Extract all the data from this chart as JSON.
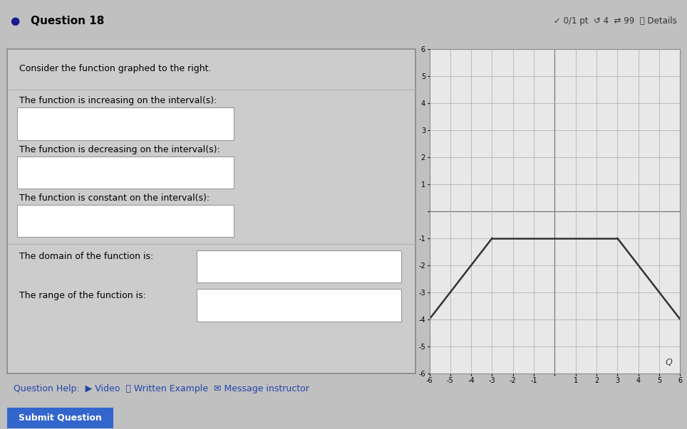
{
  "graph": {
    "xlim": [
      -6,
      6
    ],
    "ylim": [
      -6,
      6
    ],
    "xticks": [
      -6,
      -5,
      -4,
      -3,
      -2,
      -1,
      0,
      1,
      2,
      3,
      4,
      5,
      6
    ],
    "yticks": [
      -6,
      -5,
      -4,
      -3,
      -2,
      -1,
      0,
      1,
      2,
      3,
      4,
      5,
      6
    ],
    "segments": [
      {
        "x": [
          -6,
          -3
        ],
        "y": [
          -4,
          -1
        ]
      },
      {
        "x": [
          -3,
          3
        ],
        "y": [
          -1,
          -1
        ]
      },
      {
        "x": [
          3,
          6
        ],
        "y": [
          -1,
          -4
        ]
      }
    ],
    "line_color": "#333333",
    "line_width": 1.8,
    "bg_color": "#e8e8e8",
    "grid_color": "#aaaaaa"
  },
  "page_bg": "#c0c0c0",
  "header_text": "Question 18",
  "header_right": "✓ 0/1 pt  ↺ 4  ⇄ 99  ⓘ Details",
  "footer_text": "Question Help:  ▶ Video  📄 Written Example  ✉ Message instructor",
  "submit_text": "Submit Question",
  "submit_color": "#3366cc",
  "panel_bg": "#cccccc",
  "panel_border": "#888888",
  "input_box_color": "white",
  "input_box_border": "#999999"
}
